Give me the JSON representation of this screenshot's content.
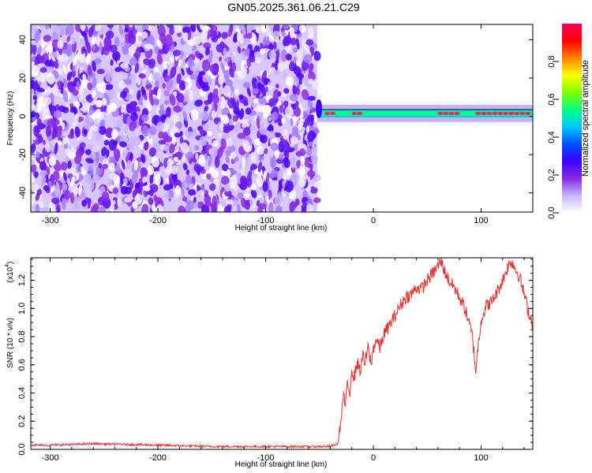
{
  "title": "GN05.2025.361.06.21.C29",
  "chart_data": [
    {
      "type": "heatmap",
      "xlabel": "Height of straight line (km)",
      "ylabel": "Frequency (Hz)",
      "xlim": [
        -318,
        148
      ],
      "ylim": [
        -50,
        48
      ],
      "xticks": [
        -300,
        -200,
        -100,
        0,
        100
      ],
      "yticks": [
        -40,
        -20,
        0,
        20,
        40
      ],
      "noise_region_x": [
        -318,
        -52
      ],
      "signal_track": {
        "x_start": -52,
        "x_end": 148,
        "frequency_center": 1.5,
        "band_width_hz": 5,
        "peak_clusters_x": [
          [
            -45,
            -35
          ],
          [
            -20,
            -10
          ],
          [
            60,
            80
          ],
          [
            95,
            145
          ]
        ]
      },
      "colorbar": {
        "label": "Normalized spectral amplitude",
        "range": [
          0,
          1
        ],
        "ticks": [
          0.0,
          0.2,
          0.4,
          0.6,
          0.8
        ],
        "tick_labels": [
          "0.0",
          "0.2",
          "0.4",
          "0.6",
          "0.8"
        ],
        "colors": [
          "#ffffff",
          "#c9b4ff",
          "#8a2be2",
          "#3b00ff",
          "#0050ff",
          "#00c8ff",
          "#00ff80",
          "#7cff00",
          "#ffff00",
          "#ff8000",
          "#ff0000",
          "#ff0060"
        ]
      }
    },
    {
      "type": "line",
      "xlabel": "Height of straight line (km)",
      "ylabel": "SNR (10 * v/v)",
      "multiplier_label": "(x10",
      "multiplier_exponent": "4",
      "xlim": [
        -318,
        148
      ],
      "ylim": [
        0,
        1.36
      ],
      "xticks": [
        -300,
        -200,
        -100,
        0,
        100
      ],
      "yticks": [
        0.0,
        0.2,
        0.4,
        0.6,
        0.8,
        1.0,
        1.2
      ],
      "series_color": "#e8312f",
      "series": [
        {
          "x": [
            -318,
            -300,
            -260,
            -200,
            -150,
            -100,
            -60,
            -40,
            -33,
            -30,
            -28,
            -26,
            -24,
            -22,
            -20,
            -18,
            -15,
            -12,
            -10,
            -8,
            -5,
            -2,
            0,
            3,
            6,
            10,
            15,
            20,
            25,
            30,
            35,
            40,
            45,
            50,
            55,
            60,
            63,
            66,
            70,
            75,
            80,
            85,
            88,
            92,
            95,
            97,
            100,
            105,
            110,
            115,
            120,
            125,
            128,
            132,
            136,
            140,
            144,
            148
          ],
          "y": [
            0.03,
            0.03,
            0.04,
            0.03,
            0.02,
            0.02,
            0.02,
            0.02,
            0.04,
            0.2,
            0.38,
            0.32,
            0.45,
            0.4,
            0.58,
            0.5,
            0.62,
            0.55,
            0.68,
            0.6,
            0.72,
            0.6,
            0.72,
            0.78,
            0.72,
            0.82,
            0.88,
            0.95,
            1.02,
            1.08,
            1.1,
            1.15,
            1.14,
            1.2,
            1.25,
            1.3,
            1.34,
            1.27,
            1.2,
            1.15,
            1.08,
            1.0,
            0.92,
            0.8,
            0.55,
            0.72,
            0.92,
            1.02,
            1.05,
            1.12,
            1.2,
            1.3,
            1.34,
            1.28,
            1.22,
            1.1,
            0.98,
            0.88
          ]
        }
      ]
    }
  ]
}
